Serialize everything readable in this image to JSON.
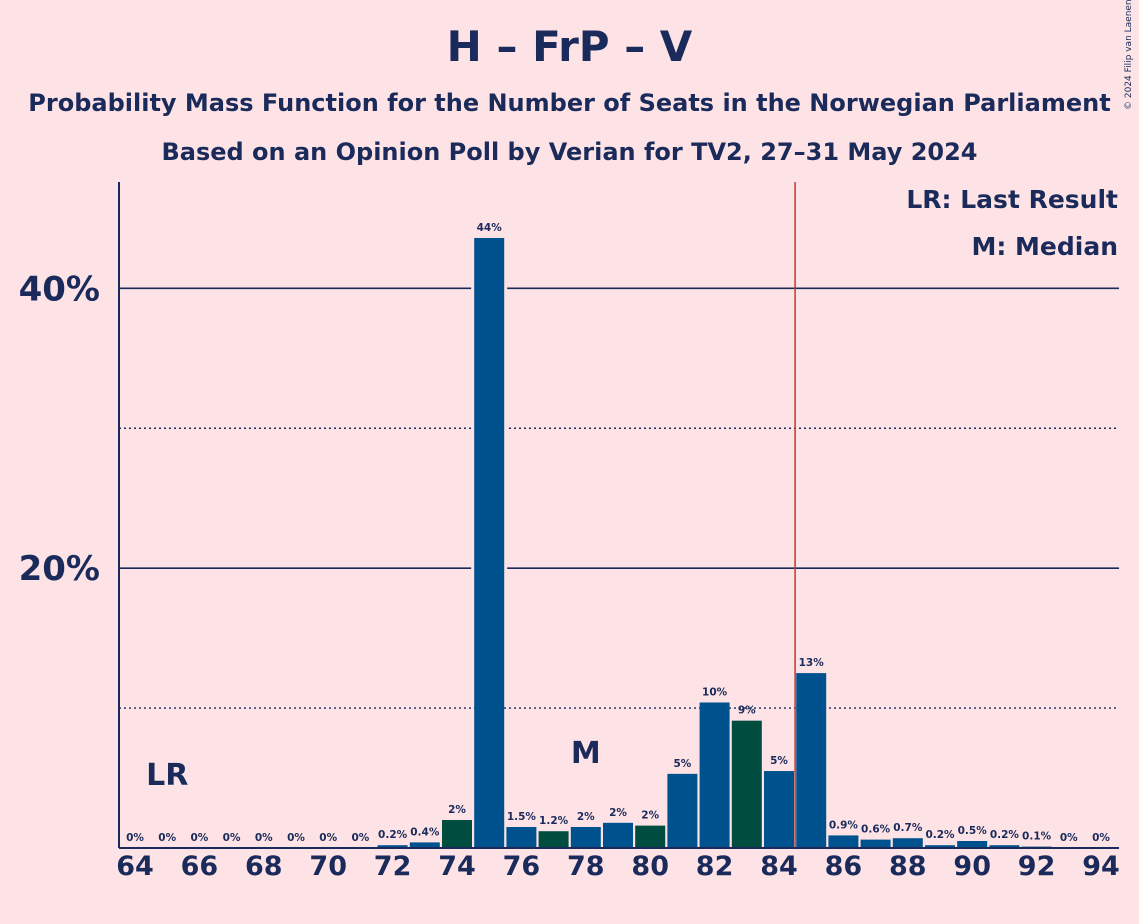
{
  "header": {
    "title": "H – FrP – V",
    "subtitle1": "Probability Mass Function for the Number of Seats in the Norwegian Parliament",
    "subtitle2": "Based on an Opinion Poll by Verian for TV2, 27–31 May 2024",
    "copyright": "© 2024 Filip van Laenen"
  },
  "legend": {
    "lr": "LR: Last Result",
    "median": "M: Median"
  },
  "chart_data": {
    "type": "bar",
    "x": [
      64,
      65,
      66,
      67,
      68,
      69,
      70,
      71,
      72,
      73,
      74,
      75,
      76,
      77,
      78,
      79,
      80,
      81,
      82,
      83,
      84,
      85,
      86,
      87,
      88,
      89,
      90,
      91,
      92,
      93,
      94
    ],
    "values": [
      0,
      0,
      0,
      0,
      0,
      0,
      0,
      0,
      0.2,
      0.4,
      2,
      43.6,
      1.5,
      1.2,
      1.5,
      1.8,
      1.6,
      5.3,
      10.4,
      9.1,
      5.5,
      12.5,
      0.9,
      0.6,
      0.7,
      0.2,
      0.5,
      0.2,
      0.1,
      0,
      0
    ],
    "labels": [
      "0%",
      "0%",
      "0%",
      "0%",
      "0%",
      "0%",
      "0%",
      "0%",
      "0.2%",
      "0.4%",
      "2%",
      "44%",
      "1.5%",
      "1.2%",
      "2%",
      "2%",
      "2%",
      "5%",
      "10%",
      "9%",
      "5%",
      "13%",
      "0.9%",
      "0.6%",
      "0.7%",
      "0.2%",
      "0.5%",
      "0.2%",
      "0.1%",
      "0%",
      "0%"
    ],
    "x_tick_labels": [
      "64",
      "66",
      "68",
      "70",
      "72",
      "74",
      "76",
      "78",
      "80",
      "82",
      "84",
      "86",
      "88",
      "90",
      "92",
      "94"
    ],
    "y_tick_labels": [
      "20%",
      "40%"
    ],
    "ylim": [
      0,
      47.6
    ],
    "majority_line_x": 84.5,
    "last_result": {
      "seat": 65,
      "label": "LR"
    },
    "median": {
      "seat": 78,
      "label": "M"
    },
    "colors": {
      "bar_blue": "#00528f",
      "bar_green": "#004d40",
      "majority_line": "#c0392b",
      "grid": "#1a2a5a",
      "background": "#fde3e5"
    }
  }
}
